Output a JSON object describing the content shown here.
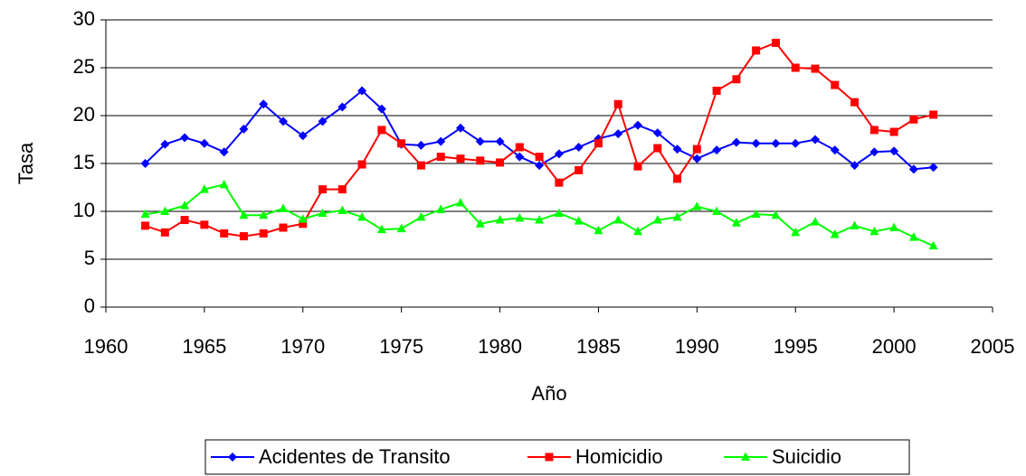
{
  "chart_data": {
    "type": "line",
    "xlabel": "Año",
    "ylabel": "Tasa",
    "x": [
      1962,
      1963,
      1964,
      1965,
      1966,
      1967,
      1968,
      1969,
      1970,
      1971,
      1972,
      1973,
      1974,
      1975,
      1976,
      1977,
      1978,
      1979,
      1980,
      1981,
      1982,
      1983,
      1984,
      1985,
      1986,
      1987,
      1988,
      1989,
      1990,
      1991,
      1992,
      1993,
      1994,
      1995,
      1996,
      1997,
      1998,
      1999,
      2000,
      2001,
      2002
    ],
    "series": [
      {
        "name": "Acidentes de Transito",
        "color": "#0000ff",
        "marker": "diamond",
        "values": [
          15,
          17,
          17.7,
          17.1,
          16.2,
          18.6,
          21.2,
          19.4,
          17.9,
          19.4,
          20.9,
          22.6,
          20.7,
          17,
          16.9,
          17.3,
          18.7,
          17.3,
          17.3,
          15.7,
          14.8,
          16,
          16.7,
          17.6,
          18.1,
          19,
          18.2,
          16.5,
          15.5,
          16.4,
          17.2,
          17.1,
          17.1,
          17.1,
          17.5,
          16.4,
          14.8,
          16.2,
          16.3,
          14.4,
          14.6
        ]
      },
      {
        "name": "Homicidio",
        "color": "#ff0000",
        "marker": "square",
        "values": [
          8.5,
          7.8,
          9.1,
          8.6,
          7.7,
          7.4,
          7.7,
          8.3,
          8.7,
          12.3,
          12.3,
          14.9,
          18.5,
          17.1,
          14.8,
          15.7,
          15.5,
          15.3,
          15.1,
          16.7,
          15.7,
          13,
          14.3,
          17.1,
          21.2,
          14.7,
          16.6,
          13.4,
          16.5,
          22.6,
          23.8,
          26.8,
          27.6,
          25,
          24.9,
          23.2,
          21.4,
          18.5,
          18.3,
          19.6,
          20.1
        ]
      },
      {
        "name": "Suicidio",
        "color": "#00ff00",
        "marker": "triangle",
        "values": [
          9.7,
          10,
          10.6,
          12.3,
          12.8,
          9.6,
          9.6,
          10.3,
          9.2,
          9.8,
          10.1,
          9.4,
          8.1,
          8.2,
          9.4,
          10.2,
          10.9,
          8.7,
          9.1,
          9.3,
          9.1,
          9.8,
          9,
          8,
          9.1,
          7.9,
          9.1,
          9.4,
          10.5,
          10,
          8.8,
          9.7,
          9.6,
          7.8,
          8.9,
          7.6,
          8.5,
          7.9,
          8.3,
          7.3,
          6.4
        ]
      }
    ],
    "xlim": [
      1960,
      2005
    ],
    "xticks": [
      1960,
      1965,
      1970,
      1975,
      1980,
      1985,
      1990,
      1995,
      2000,
      2005
    ],
    "ylim": [
      0,
      30
    ],
    "yticks": [
      0,
      5,
      10,
      15,
      20,
      25,
      30
    ],
    "grid": true,
    "legend": "bottom"
  }
}
